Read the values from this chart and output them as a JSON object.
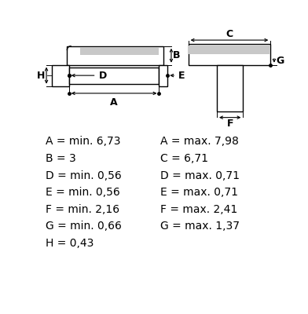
{
  "background_color": "#ffffff",
  "line_color": "#000000",
  "gray_fill": "#c8c8c8",
  "text_color": "#000000",
  "font_size_labels": 10,
  "font_size_dims": 9,
  "left_specs": [
    "A = min. 6,73",
    "B = 3",
    "D = min. 0,56",
    "E = min. 0,56",
    "F = min. 2,16",
    "G = min. 0,66",
    "H = 0,43"
  ],
  "right_specs": [
    "A = max. 7,98",
    "C = 6,71",
    "D = max. 0,71",
    "E = max. 0,71",
    "F = max. 2,41",
    "G = max. 1,37"
  ]
}
